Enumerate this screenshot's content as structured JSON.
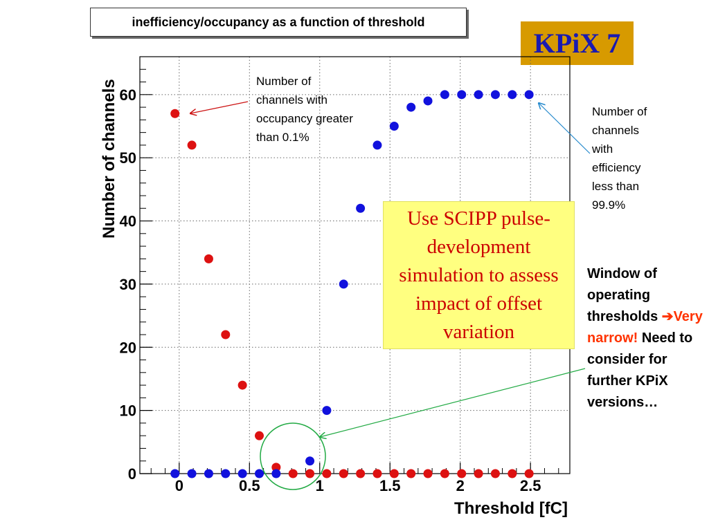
{
  "slide": {
    "title": "inefficiency/occupancy as a function of threshold",
    "kpix_label": "KPiX 7",
    "occupancy_annotation": "Number of channels with occupancy greater than 0.1%",
    "efficiency_annotation": "Number of channels with efficiency less than 99.9%",
    "simulation_note": "Use SCIPP pulse-development simulation to assess impact of offset variation",
    "window_text_1": "Window of operating thresholds ",
    "window_arrow": "➔",
    "window_highlight": "Very narrow!",
    "window_text_2": " Need to consider for further KPiX versions…"
  },
  "chart_data": {
    "type": "scatter",
    "xlabel": "Threshold [fC]",
    "ylabel": "Number of channels",
    "xlim": [
      -0.28,
      2.78
    ],
    "ylim": [
      0,
      66
    ],
    "xticks": [
      0,
      0.5,
      1,
      1.5,
      2,
      2.5
    ],
    "xtick_labels": [
      "0",
      "0.5",
      "1",
      "1.5",
      "2",
      "2.5"
    ],
    "yticks": [
      0,
      10,
      20,
      30,
      40,
      50,
      60
    ],
    "ytick_labels": [
      "0",
      "10",
      "20",
      "30",
      "40",
      "50",
      "60"
    ],
    "grid": true,
    "series": [
      {
        "color": "#dd1111",
        "x": [
          -0.03,
          0.09,
          0.21,
          0.33,
          0.45,
          0.57,
          0.69,
          0.81,
          0.93,
          1.05,
          1.17,
          1.29,
          1.41,
          1.53,
          1.65,
          1.77,
          1.89,
          2.01,
          2.13,
          2.25,
          2.37,
          2.49
        ],
        "y": [
          57,
          52,
          34,
          22,
          14,
          6,
          1,
          0,
          0,
          0,
          0,
          0,
          0,
          0,
          0,
          0,
          0,
          0,
          0,
          0,
          0,
          0
        ]
      },
      {
        "color": "#1111dd",
        "x": [
          -0.03,
          0.09,
          0.21,
          0.33,
          0.45,
          0.57,
          0.69,
          0.93,
          1.05,
          1.17,
          1.29,
          1.41,
          1.53,
          1.65,
          1.77,
          1.89,
          2.01,
          2.13,
          2.25,
          2.37,
          2.49
        ],
        "y": [
          0,
          0,
          0,
          0,
          0,
          0,
          0,
          2,
          10,
          30,
          42,
          52,
          55,
          58,
          59,
          60,
          60,
          60,
          60,
          60,
          60
        ]
      }
    ],
    "colors": {
      "axis": "#000000",
      "grid": "#666666",
      "circle": "#22aa44",
      "arrow_red": "#cc1111",
      "arrow_blue": "#2288cc",
      "arrow_green": "#22aa44"
    }
  }
}
